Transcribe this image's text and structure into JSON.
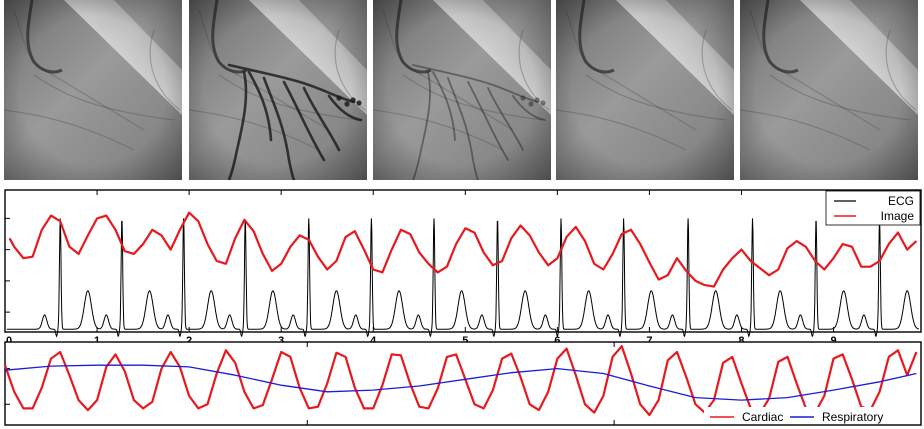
{
  "frames": [
    {
      "label": "",
      "vessels": "faint"
    },
    {
      "label": "",
      "vessels": "full"
    },
    {
      "label": "",
      "vessels": "partial"
    },
    {
      "label": "",
      "vessels": "faint"
    },
    {
      "label": "",
      "vessels": "faint"
    }
  ],
  "chart_data": [
    {
      "type": "line",
      "x_ticks": [
        0,
        1,
        2,
        3,
        4,
        5,
        6,
        7,
        8,
        9
      ],
      "xlim": [
        0,
        9.95
      ],
      "ylim": [
        0,
        1
      ],
      "grid": false,
      "legend_position": "top-right",
      "series": [
        {
          "name": "ECG",
          "color": "#000000",
          "beat_times": [
            0.6,
            1.27,
            1.94,
            2.61,
            3.3,
            3.98,
            4.66,
            5.35,
            6.04,
            6.72,
            7.42,
            8.12,
            8.81,
            9.5
          ]
        },
        {
          "name": "Image",
          "color": "#e8191e",
          "x": [
            0.05,
            0.1,
            0.2,
            0.3,
            0.4,
            0.5,
            0.6,
            0.7,
            0.8,
            0.9,
            1.0,
            1.1,
            1.2,
            1.3,
            1.4,
            1.5,
            1.6,
            1.7,
            1.8,
            1.9,
            2.0,
            2.1,
            2.2,
            2.3,
            2.4,
            2.5,
            2.6,
            2.7,
            2.8,
            2.9,
            3.0,
            3.1,
            3.2,
            3.3,
            3.4,
            3.5,
            3.6,
            3.7,
            3.8,
            3.9,
            4.0,
            4.1,
            4.2,
            4.3,
            4.4,
            4.5,
            4.6,
            4.7,
            4.8,
            4.9,
            5.0,
            5.1,
            5.2,
            5.3,
            5.4,
            5.5,
            5.6,
            5.7,
            5.8,
            5.9,
            6.0,
            6.1,
            6.2,
            6.3,
            6.4,
            6.5,
            6.6,
            6.7,
            6.8,
            6.9,
            7.0,
            7.1,
            7.2,
            7.3,
            7.4,
            7.5,
            7.6,
            7.7,
            7.8,
            7.9,
            8.0,
            8.1,
            8.2,
            8.3,
            8.4,
            8.5,
            8.6,
            8.7,
            8.8,
            8.9,
            9.0,
            9.1,
            9.2,
            9.3,
            9.4,
            9.5,
            9.6,
            9.7,
            9.8,
            9.9
          ],
          "y": [
            0.66,
            0.6,
            0.52,
            0.53,
            0.72,
            0.82,
            0.78,
            0.6,
            0.55,
            0.68,
            0.8,
            0.82,
            0.72,
            0.57,
            0.55,
            0.62,
            0.72,
            0.68,
            0.58,
            0.72,
            0.84,
            0.78,
            0.62,
            0.5,
            0.48,
            0.66,
            0.79,
            0.71,
            0.55,
            0.43,
            0.48,
            0.6,
            0.68,
            0.65,
            0.53,
            0.44,
            0.5,
            0.67,
            0.71,
            0.58,
            0.44,
            0.42,
            0.58,
            0.72,
            0.69,
            0.56,
            0.48,
            0.42,
            0.46,
            0.62,
            0.73,
            0.7,
            0.56,
            0.47,
            0.5,
            0.66,
            0.75,
            0.68,
            0.56,
            0.47,
            0.52,
            0.67,
            0.74,
            0.64,
            0.48,
            0.44,
            0.55,
            0.69,
            0.72,
            0.62,
            0.49,
            0.37,
            0.4,
            0.52,
            0.43,
            0.36,
            0.33,
            0.32,
            0.44,
            0.52,
            0.58,
            0.5,
            0.45,
            0.4,
            0.44,
            0.59,
            0.64,
            0.6,
            0.5,
            0.44,
            0.52,
            0.62,
            0.6,
            0.46,
            0.46,
            0.5,
            0.62,
            0.7,
            0.58,
            0.64
          ]
        }
      ]
    },
    {
      "type": "line",
      "xlim": [
        0,
        9.95
      ],
      "ylim": [
        0,
        1
      ],
      "grid": false,
      "legend_position": "bottom-right",
      "series": [
        {
          "name": "Cardiac",
          "color": "#e8191e",
          "x": [
            0.0,
            0.1,
            0.2,
            0.3,
            0.4,
            0.5,
            0.6,
            0.7,
            0.8,
            0.9,
            1.0,
            1.1,
            1.2,
            1.3,
            1.4,
            1.5,
            1.6,
            1.7,
            1.8,
            1.9,
            2.0,
            2.1,
            2.2,
            2.3,
            2.4,
            2.5,
            2.6,
            2.7,
            2.8,
            2.9,
            3.0,
            3.1,
            3.2,
            3.3,
            3.4,
            3.5,
            3.6,
            3.7,
            3.8,
            3.9,
            4.0,
            4.1,
            4.2,
            4.3,
            4.4,
            4.5,
            4.6,
            4.7,
            4.8,
            4.9,
            5.0,
            5.1,
            5.2,
            5.3,
            5.4,
            5.5,
            5.6,
            5.7,
            5.8,
            5.9,
            6.0,
            6.1,
            6.2,
            6.3,
            6.4,
            6.5,
            6.6,
            6.7,
            6.8,
            6.9,
            7.0,
            7.1,
            7.2,
            7.3,
            7.4,
            7.5,
            7.6,
            7.7,
            7.8,
            7.9,
            8.0,
            8.1,
            8.2,
            8.3,
            8.4,
            8.5,
            8.6,
            8.7,
            8.8,
            8.9,
            9.0,
            9.1,
            9.2,
            9.3,
            9.4,
            9.5,
            9.6,
            9.7,
            9.8,
            9.9
          ],
          "y": [
            0.72,
            0.4,
            0.2,
            0.2,
            0.45,
            0.8,
            0.88,
            0.6,
            0.3,
            0.18,
            0.3,
            0.7,
            0.85,
            0.65,
            0.3,
            0.2,
            0.28,
            0.68,
            0.88,
            0.7,
            0.35,
            0.2,
            0.25,
            0.62,
            0.9,
            0.75,
            0.4,
            0.2,
            0.24,
            0.55,
            0.88,
            0.82,
            0.45,
            0.2,
            0.22,
            0.5,
            0.87,
            0.82,
            0.45,
            0.2,
            0.2,
            0.48,
            0.85,
            0.84,
            0.5,
            0.22,
            0.2,
            0.44,
            0.82,
            0.85,
            0.55,
            0.25,
            0.2,
            0.42,
            0.8,
            0.86,
            0.58,
            0.25,
            0.18,
            0.4,
            0.8,
            0.92,
            0.6,
            0.25,
            0.15,
            0.35,
            0.82,
            0.95,
            0.62,
            0.25,
            0.12,
            0.3,
            0.78,
            0.88,
            0.58,
            0.25,
            0.15,
            0.3,
            0.75,
            0.82,
            0.5,
            0.2,
            0.14,
            0.32,
            0.76,
            0.82,
            0.5,
            0.2,
            0.15,
            0.35,
            0.8,
            0.85,
            0.55,
            0.22,
            0.18,
            0.4,
            0.82,
            0.9,
            0.6,
            0.88
          ]
        },
        {
          "name": "Respiratory",
          "color": "#1c1cd8",
          "x": [
            0.0,
            0.5,
            1.0,
            1.5,
            2.0,
            2.5,
            3.0,
            3.5,
            4.0,
            4.5,
            5.0,
            5.5,
            6.0,
            6.5,
            7.0,
            7.5,
            8.0,
            8.5,
            9.0,
            9.5,
            9.9
          ],
          "y": [
            0.66,
            0.71,
            0.72,
            0.72,
            0.7,
            0.6,
            0.48,
            0.4,
            0.42,
            0.47,
            0.55,
            0.63,
            0.68,
            0.62,
            0.47,
            0.33,
            0.3,
            0.33,
            0.42,
            0.52,
            0.62
          ]
        }
      ]
    }
  ]
}
